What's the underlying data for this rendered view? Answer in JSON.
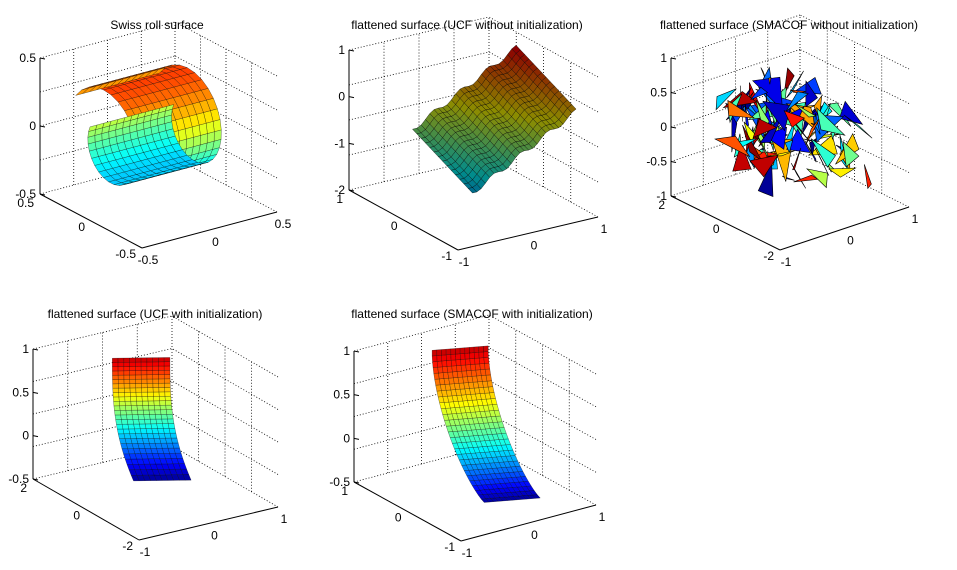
{
  "figure": {
    "background": "#ffffff"
  },
  "chart_data": [
    {
      "type": "surface3d",
      "title": "Swiss roll surface",
      "shape": "swiss-roll",
      "colormap": "jet",
      "zticks": [
        "0.5",
        "0",
        "-0.5"
      ],
      "yticks": [
        "0.5",
        "0",
        "-0.5"
      ],
      "xticks": [
        "-0.5",
        "0",
        "0.5"
      ],
      "zlim": [
        -0.5,
        0.5
      ],
      "xlim": [
        -0.5,
        0.5
      ],
      "ylim": [
        -0.5,
        0.5
      ]
    },
    {
      "type": "surface3d",
      "title": "flattened surface (UCF without initialization)",
      "shape": "tilted-plane",
      "colormap": "jet",
      "zticks": [
        "1",
        "0",
        "-1",
        "-2"
      ],
      "yticks": [
        "1",
        "0",
        "-1"
      ],
      "xticks": [
        "-1",
        "0",
        "1"
      ],
      "zlim": [
        -2,
        1
      ],
      "xlim": [
        -1,
        1
      ],
      "ylim": [
        -1,
        1
      ]
    },
    {
      "type": "surface3d",
      "title": "flattened surface (SMACOF without initialization)",
      "shape": "crumpled",
      "colormap": "jet",
      "zticks": [
        "1",
        "0.5",
        "0",
        "-0.5",
        "-1"
      ],
      "yticks": [
        "2",
        "0",
        "-2"
      ],
      "xticks": [
        "-1",
        "0",
        "1"
      ],
      "zlim": [
        -1,
        1
      ],
      "xlim": [
        -1,
        1
      ],
      "ylim": [
        -2,
        2
      ]
    },
    {
      "type": "surface3d",
      "title": "flattened surface (UCF with initialization)",
      "shape": "vertical-sheet",
      "colormap": "jet",
      "zticks": [
        "1",
        "0.5",
        "0",
        "-0.5"
      ],
      "yticks": [
        "2",
        "0",
        "-2"
      ],
      "xticks": [
        "-1",
        "0",
        "1"
      ],
      "zlim": [
        -0.5,
        1
      ],
      "xlim": [
        -1,
        1
      ],
      "ylim": [
        -2,
        2
      ]
    },
    {
      "type": "surface3d",
      "title": "flattened surface (SMACOF with initialization)",
      "shape": "curved-sheet",
      "colormap": "jet",
      "zticks": [
        "1",
        "0.5",
        "0",
        "-0.5"
      ],
      "yticks": [
        "1",
        "0",
        "-1"
      ],
      "xticks": [
        "-1",
        "0",
        "1"
      ],
      "zlim": [
        -0.5,
        1
      ],
      "xlim": [
        -1,
        1
      ],
      "ylim": [
        -1,
        1
      ]
    }
  ]
}
